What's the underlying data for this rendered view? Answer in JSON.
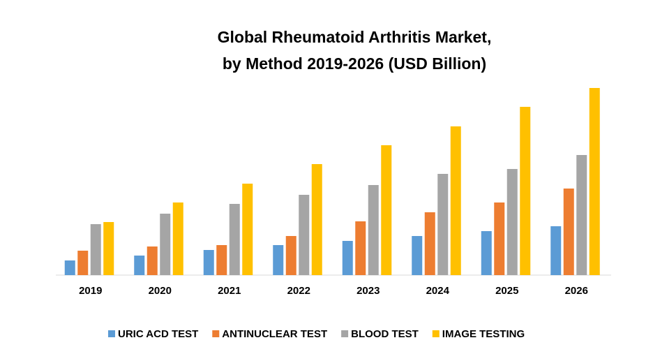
{
  "chart_data": {
    "type": "bar",
    "title": [
      "Global Rheumatoid Arthritis Market,",
      "by Method 2019-2026 (USD Billion)"
    ],
    "categories": [
      "2019",
      "2020",
      "2021",
      "2022",
      "2023",
      "2024",
      "2025",
      "2026"
    ],
    "series": [
      {
        "name": "URIC ACD TEST",
        "color": "#5b9bd5",
        "values": [
          21,
          28,
          36,
          43,
          49,
          56,
          63,
          70
        ]
      },
      {
        "name": "ANTINUCLEAR TEST",
        "color": "#ed7d31",
        "values": [
          35,
          41,
          43,
          56,
          77,
          90,
          104,
          124
        ]
      },
      {
        "name": "BLOOD TEST",
        "color": "#a5a5a5",
        "values": [
          73,
          88,
          102,
          115,
          129,
          145,
          152,
          172
        ]
      },
      {
        "name": "IMAGE TESTING",
        "color": "#ffc000",
        "values": [
          76,
          104,
          131,
          159,
          186,
          213,
          241,
          268
        ]
      }
    ],
    "ylim": [
      0,
      270
    ],
    "legend": "bottom"
  }
}
